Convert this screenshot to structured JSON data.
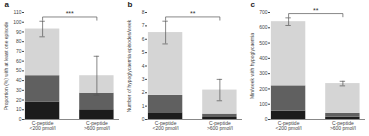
{
  "chart_data": [
    {
      "type": "bar",
      "stacked": true,
      "title": "a",
      "ylabel": "Proportion (%) with at least one episode",
      "categories": [
        "C-peptide\n<200 pmol/l",
        "C-peptide\n>600 pmol/l"
      ],
      "series": [
        {
          "color": "#1c1c1c",
          "values": [
            18,
            10
          ]
        },
        {
          "color": "#606060",
          "values": [
            27,
            17
          ]
        },
        {
          "color": "#d5d5d5",
          "values": [
            48,
            18
          ]
        }
      ],
      "errors": [
        8,
        20
      ],
      "annotations": [
        "***"
      ],
      "ylim": [
        0,
        110
      ],
      "yticks": [
        0,
        10,
        20,
        30,
        40,
        50,
        60,
        70,
        80,
        90,
        100,
        110
      ]
    },
    {
      "type": "bar",
      "stacked": true,
      "title": "b",
      "ylabel": "Number of hypoglycaemia episodes/week",
      "categories": [
        "C-peptide\n<200 pmol/l",
        "C-peptide\n>600 pmol/l"
      ],
      "series": [
        {
          "color": "#1c1c1c",
          "values": [
            0.5,
            0.15
          ]
        },
        {
          "color": "#606060",
          "values": [
            1.3,
            0.25
          ]
        },
        {
          "color": "#d5d5d5",
          "values": [
            4.7,
            1.8
          ]
        }
      ],
      "errors": [
        0.85,
        0.8
      ],
      "annotations": [
        "**"
      ],
      "ylim": [
        0,
        8
      ],
      "yticks": [
        0,
        1,
        2,
        3,
        4,
        5,
        6,
        7,
        8
      ]
    },
    {
      "type": "bar",
      "stacked": true,
      "title": "c",
      "ylabel": "Min/week with hypoglycaemia",
      "categories": [
        "C-peptide\n<200 pmol/l",
        "C-peptide\n>600 pmol/l"
      ],
      "series": [
        {
          "color": "#1c1c1c",
          "values": [
            55,
            15
          ]
        },
        {
          "color": "#606060",
          "values": [
            165,
            25
          ]
        },
        {
          "color": "#d5d5d5",
          "values": [
            420,
            195
          ]
        }
      ],
      "errors": [
        25,
        15
      ],
      "annotations": [
        "**"
      ],
      "ylim": [
        0,
        700
      ],
      "yticks": [
        0,
        100,
        200,
        300,
        400,
        500,
        600,
        700
      ]
    }
  ]
}
